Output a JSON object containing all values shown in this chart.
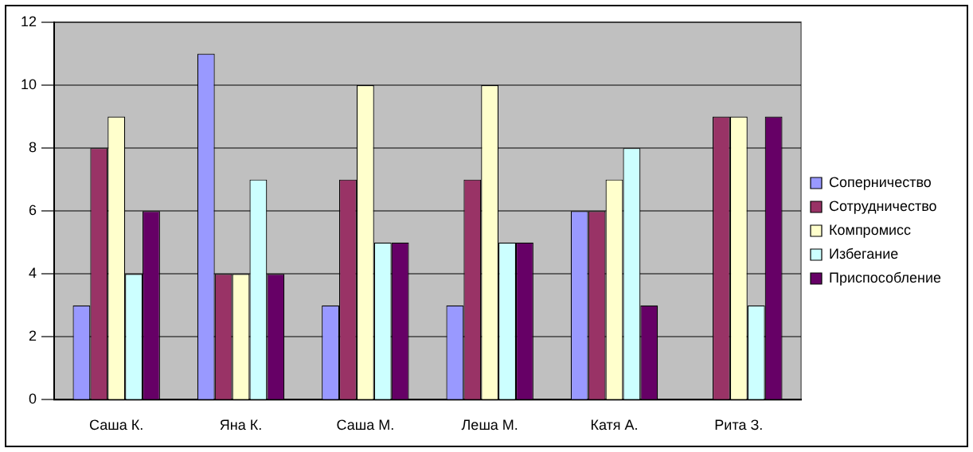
{
  "chart_data": {
    "type": "bar",
    "categories": [
      "Саша К.",
      "Яна К.",
      "Саша М.",
      "Леша М.",
      "Катя А.",
      "Рита З."
    ],
    "series": [
      {
        "name": "Соперничество",
        "color": "#9999ff",
        "values": [
          3,
          11,
          3,
          3,
          6,
          0
        ]
      },
      {
        "name": "Сотрудничество",
        "color": "#993366",
        "values": [
          8,
          4,
          7,
          7,
          6,
          9
        ]
      },
      {
        "name": "Компромисс",
        "color": "#ffffcc",
        "values": [
          9,
          4,
          10,
          10,
          7,
          9
        ]
      },
      {
        "name": "Избегание",
        "color": "#ccffff",
        "values": [
          4,
          7,
          5,
          5,
          8,
          3
        ]
      },
      {
        "name": "Приспособление",
        "color": "#660066",
        "values": [
          6,
          4,
          5,
          5,
          3,
          9
        ]
      }
    ],
    "ylim": [
      0,
      12
    ],
    "yticks": [
      0,
      2,
      4,
      6,
      8,
      10,
      12
    ],
    "grid": "y",
    "legend": "right"
  }
}
